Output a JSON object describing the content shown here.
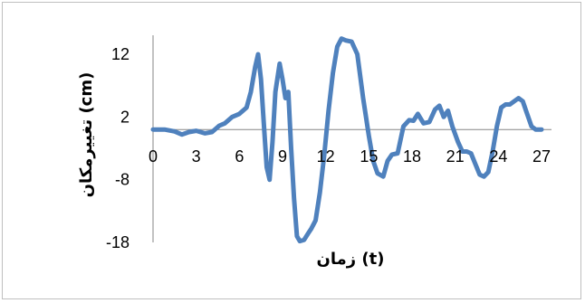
{
  "chart_data": {
    "type": "line",
    "title": "",
    "xlabel": "زمان (t)",
    "ylabel": "تغییرمکان (cm)",
    "xlim": [
      0,
      27
    ],
    "ylim": [
      -18,
      12
    ],
    "x_ticks": [
      0,
      3,
      6,
      9,
      12,
      15,
      18,
      21,
      24,
      27
    ],
    "y_ticks": [
      -18,
      -8,
      2,
      12
    ],
    "grid": false,
    "legend": "none",
    "line_color": "#4f81bd",
    "series": [
      {
        "x": [
          0,
          0.8,
          1.5,
          2,
          2.5,
          3,
          3.6,
          4.1,
          4.6,
          5.0,
          5.5,
          6.0,
          6.5,
          6.8,
          7.1,
          7.3,
          7.5,
          7.7,
          7.9,
          8.1,
          8.3,
          8.5,
          8.8,
          9.0,
          9.2,
          9.4,
          9.6,
          9.8,
          10.0,
          10.2,
          10.5,
          10.8,
          11.0,
          11.3,
          11.6,
          11.9,
          12.2,
          12.5,
          12.8,
          13.1,
          13.4,
          13.8,
          14.2,
          14.6,
          15.0,
          15.3,
          15.6,
          16.0,
          16.3,
          16.6,
          17.0,
          17.4,
          17.8,
          18.1,
          18.4,
          18.8,
          19.2,
          19.6,
          19.9,
          20.2,
          20.5,
          20.8,
          21.2,
          21.5,
          21.8,
          22.1,
          22.4,
          22.7,
          23.0,
          23.3,
          23.6,
          23.9,
          24.2,
          24.5,
          24.8,
          25.1,
          25.4,
          25.7,
          26.0,
          26.3,
          26.6,
          27.0
        ],
        "y": [
          0,
          0,
          -0.3,
          -0.8,
          -0.4,
          -0.2,
          -0.6,
          -0.4,
          0.6,
          1.0,
          2.0,
          2.5,
          3.5,
          6.0,
          10.0,
          12.0,
          8.0,
          1.0,
          -6.0,
          -8.0,
          -2.0,
          6.0,
          10.5,
          8.0,
          5.0,
          6.0,
          -3.0,
          -11.0,
          -17.0,
          -17.8,
          -17.6,
          -16.5,
          -15.8,
          -14.5,
          -10.0,
          -4.0,
          3.0,
          9.0,
          13.2,
          14.5,
          14.2,
          14.0,
          12.0,
          5.0,
          -1.0,
          -5.0,
          -7.0,
          -7.5,
          -5.0,
          -4.0,
          -3.8,
          0.5,
          1.5,
          1.4,
          2.5,
          1.0,
          1.2,
          3.2,
          3.8,
          2.0,
          3.0,
          0.5,
          -2.0,
          -3.5,
          -3.5,
          -3.8,
          -5.5,
          -7.2,
          -7.5,
          -6.8,
          -3.5,
          0.5,
          3.5,
          4.0,
          4.0,
          4.5,
          5.0,
          4.5,
          2.5,
          0.5,
          0,
          0
        ]
      }
    ]
  }
}
